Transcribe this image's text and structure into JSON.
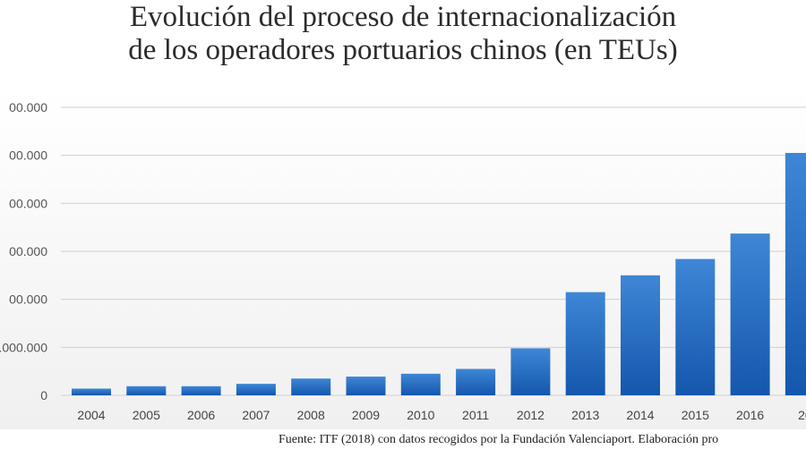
{
  "title_lines": [
    "Evolución del proceso de internacionalización",
    "de los operadores portuarios chinos (en TEUs)"
  ],
  "source_text": "Fuente: ITF (2018) con datos recogidos por la Fundación Valenciaport. Elaboración pro",
  "colors": {
    "bar_top": "#3f86d6",
    "bar_bottom": "#1457ad",
    "grid": "#d0d0d0"
  },
  "chart_data": {
    "type": "bar",
    "title": "Evolución del proceso de internacionalización de los operadores portuarios chinos (en TEUs)",
    "xlabel": "",
    "ylabel": "",
    "categories": [
      "2004",
      "2005",
      "2006",
      "2007",
      "2008",
      "2009",
      "2010",
      "2011",
      "2012",
      "2013",
      "2014",
      "2015",
      "2016",
      "20"
    ],
    "values": [
      14000000,
      19000000,
      19000000,
      24000000,
      35000000,
      39000000,
      45000000,
      55000000,
      98000000,
      215000000,
      250000000,
      284000000,
      337000000,
      505000000
    ],
    "yticks": [
      0,
      100000000,
      200000000,
      300000000,
      400000000,
      500000000,
      600000000
    ],
    "ytick_labels": [
      "0",
      ".000.000",
      "00.000",
      "00.000",
      "00.000",
      "00.000",
      "00.000"
    ],
    "ylim": [
      0,
      600000000
    ],
    "grid": true,
    "legend": "none"
  }
}
